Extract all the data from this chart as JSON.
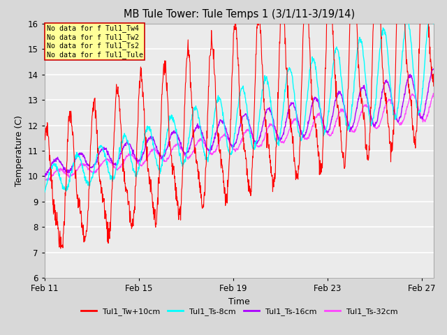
{
  "title": "MB Tule Tower: Tule Temps 1 (3/1/11-3/19/14)",
  "xlabel": "Time",
  "ylabel": "Temperature (C)",
  "ylim": [
    6.0,
    16.0
  ],
  "yticks": [
    6.0,
    7.0,
    8.0,
    9.0,
    10.0,
    11.0,
    12.0,
    13.0,
    14.0,
    15.0,
    16.0
  ],
  "xtick_labels": [
    "Feb 11",
    "Feb 15",
    "Feb 19",
    "Feb 23",
    "Feb 27"
  ],
  "bg_color": "#d8d8d8",
  "plot_bg_color": "#ebebeb",
  "grid_color": "#ffffff",
  "line_colors": {
    "Tw10": "#ff0000",
    "Ts8": "#00ffff",
    "Ts16": "#aa00ff",
    "Ts32": "#ff44ff"
  },
  "legend_labels": [
    "Tul1_Tw+10cm",
    "Tul1_Ts-8cm",
    "Tul1_Ts-16cm",
    "Tul1_Ts-32cm"
  ],
  "watermark_text": "No data for f Tul1_Tw4\nNo data for f Tul1_Tw2\nNo data for f Tul1_Ts2\nNo data for f Tul1_Tule",
  "watermark_box_color": "#ffff99",
  "watermark_box_edge": "#cc0000"
}
